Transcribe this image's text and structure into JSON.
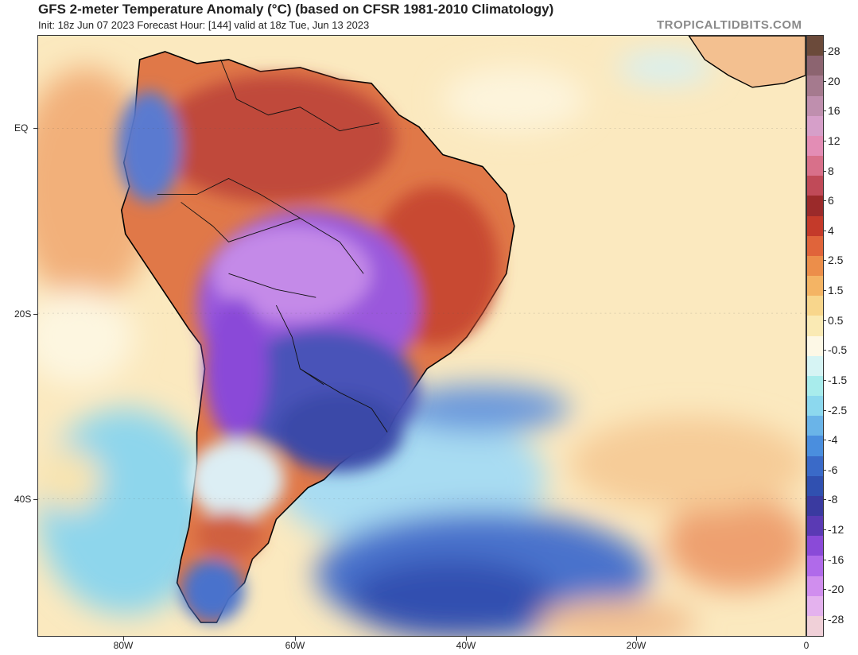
{
  "header": {
    "title": "GFS 2-meter Temperature Anomaly (°C) (based on CFSR 1981-2010 Climatology)",
    "subtitle": "Init: 18z Jun 07 2023   Forecast Hour: [144]   valid at 18z Tue, Jun 13 2023",
    "credit": "TROPICALTIDBITS.COM"
  },
  "axes": {
    "lat_labels": [
      "EQ",
      "20S",
      "40S"
    ],
    "lon_labels": [
      "80W",
      "60W",
      "40W",
      "20W",
      "0"
    ]
  },
  "colorbar": {
    "labels": [
      "28",
      "20",
      "16",
      "12",
      "8",
      "6",
      "4",
      "2.5",
      "1.5",
      "0.5",
      "-0.5",
      "-1.5",
      "-2.5",
      "-4",
      "-6",
      "-8",
      "-12",
      "-16",
      "-20",
      "-28"
    ],
    "colors": [
      "#6b4a3a",
      "#8c6470",
      "#a57a8e",
      "#bf8fae",
      "#d69fc9",
      "#e38db5",
      "#d8708a",
      "#c04a58",
      "#9b2a2a",
      "#c43a2a",
      "#e0643a",
      "#ec8e4a",
      "#f4b464",
      "#f8d68c",
      "#faeab4",
      "#fdf8e6",
      "#d6f4f4",
      "#a8ecec",
      "#8cd8ee",
      "#6ab4e8",
      "#4a8ede",
      "#3a6ac8",
      "#3050b0",
      "#3a3aa0",
      "#5a3ab4",
      "#8a4ad8",
      "#b06aea",
      "#d08eee",
      "#e4b2ee",
      "#f0d0d8"
    ]
  }
}
